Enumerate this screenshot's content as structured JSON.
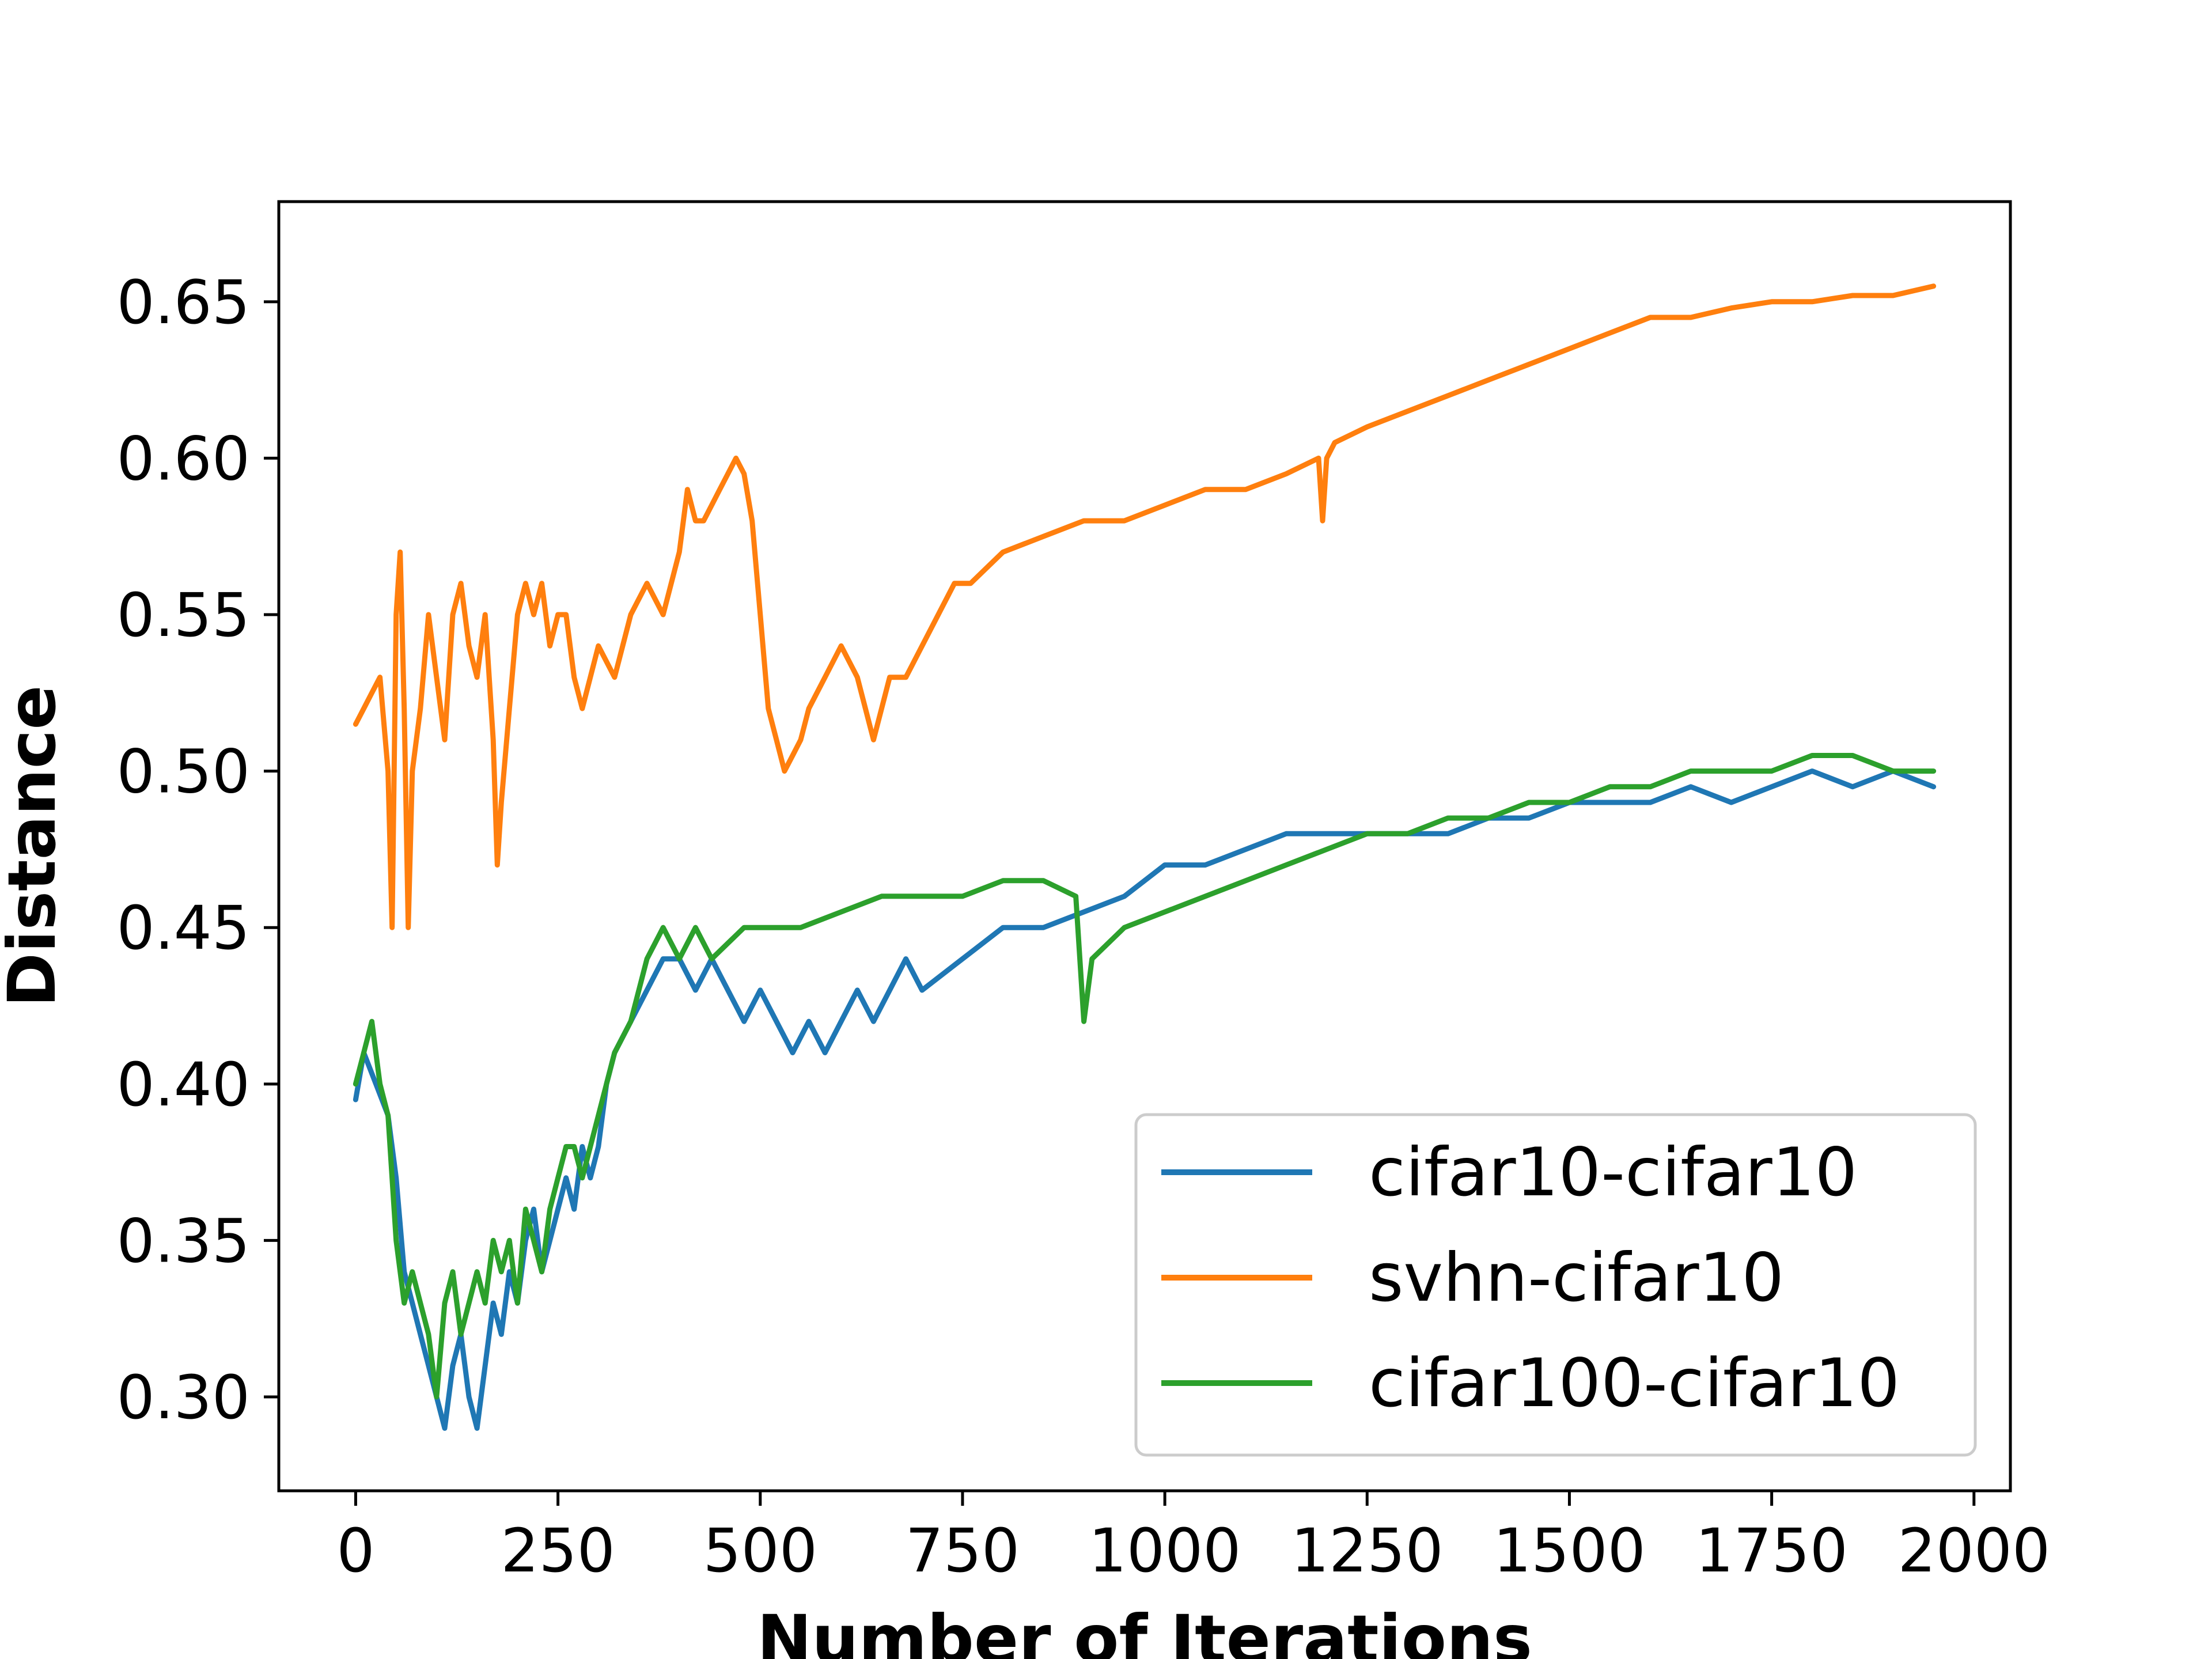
{
  "chart_data": {
    "type": "line",
    "title": "",
    "xlabel": "Number of Iterations",
    "ylabel": "Distance",
    "xlim": [
      -95,
      2045
    ],
    "ylim": [
      0.27,
      0.682
    ],
    "xticks": [
      0,
      250,
      500,
      750,
      1000,
      1250,
      1500,
      1750,
      2000
    ],
    "xtick_labels": [
      "0",
      "250",
      "500",
      "750",
      "1000",
      "1250",
      "1500",
      "1750",
      "2000"
    ],
    "yticks": [
      0.3,
      0.35,
      0.4,
      0.45,
      0.5,
      0.55,
      0.6,
      0.65
    ],
    "ytick_labels": [
      "0.30",
      "0.35",
      "0.40",
      "0.45",
      "0.50",
      "0.55",
      "0.60",
      "0.65"
    ],
    "grid": false,
    "legend_position": "lower-right",
    "series": [
      {
        "name": "cifar10-cifar10",
        "color": "#1f77b4",
        "x": [
          0,
          10,
          25,
          40,
          50,
          60,
          70,
          80,
          90,
          100,
          110,
          120,
          130,
          140,
          150,
          160,
          170,
          180,
          190,
          200,
          210,
          220,
          230,
          240,
          250,
          260,
          270,
          280,
          290,
          300,
          310,
          320,
          340,
          360,
          380,
          400,
          420,
          440,
          460,
          480,
          500,
          520,
          540,
          560,
          580,
          600,
          620,
          640,
          660,
          680,
          700,
          750,
          800,
          850,
          900,
          950,
          1000,
          1050,
          1100,
          1150,
          1200,
          1250,
          1300,
          1350,
          1400,
          1450,
          1500,
          1550,
          1600,
          1650,
          1700,
          1750,
          1800,
          1850,
          1900,
          1950
        ],
        "y": [
          0.395,
          0.41,
          0.4,
          0.39,
          0.37,
          0.34,
          0.33,
          0.32,
          0.31,
          0.3,
          0.29,
          0.31,
          0.32,
          0.3,
          0.29,
          0.31,
          0.33,
          0.32,
          0.34,
          0.33,
          0.35,
          0.36,
          0.34,
          0.35,
          0.36,
          0.37,
          0.36,
          0.38,
          0.37,
          0.38,
          0.4,
          0.41,
          0.42,
          0.43,
          0.44,
          0.44,
          0.43,
          0.44,
          0.43,
          0.42,
          0.43,
          0.42,
          0.41,
          0.42,
          0.41,
          0.42,
          0.43,
          0.42,
          0.43,
          0.44,
          0.43,
          0.44,
          0.45,
          0.45,
          0.455,
          0.46,
          0.47,
          0.47,
          0.475,
          0.48,
          0.48,
          0.48,
          0.48,
          0.48,
          0.485,
          0.485,
          0.49,
          0.49,
          0.49,
          0.495,
          0.49,
          0.495,
          0.5,
          0.495,
          0.5,
          0.495
        ]
      },
      {
        "name": "svhn-cifar10",
        "color": "#ff7f0e",
        "x": [
          0,
          10,
          20,
          30,
          40,
          45,
          50,
          55,
          60,
          65,
          70,
          80,
          90,
          100,
          110,
          120,
          130,
          140,
          150,
          160,
          170,
          175,
          180,
          190,
          200,
          210,
          220,
          230,
          240,
          250,
          260,
          270,
          280,
          290,
          300,
          320,
          340,
          360,
          380,
          400,
          410,
          420,
          430,
          440,
          450,
          460,
          470,
          480,
          490,
          500,
          510,
          520,
          530,
          540,
          550,
          560,
          580,
          600,
          620,
          640,
          660,
          680,
          700,
          720,
          740,
          760,
          780,
          800,
          850,
          900,
          950,
          1000,
          1050,
          1100,
          1150,
          1190,
          1195,
          1200,
          1210,
          1250,
          1300,
          1350,
          1400,
          1450,
          1500,
          1550,
          1600,
          1650,
          1700,
          1750,
          1800,
          1850,
          1900,
          1950
        ],
        "y": [
          0.515,
          0.52,
          0.525,
          0.53,
          0.5,
          0.45,
          0.55,
          0.57,
          0.52,
          0.45,
          0.5,
          0.52,
          0.55,
          0.53,
          0.51,
          0.55,
          0.56,
          0.54,
          0.53,
          0.55,
          0.51,
          0.47,
          0.49,
          0.52,
          0.55,
          0.56,
          0.55,
          0.56,
          0.54,
          0.55,
          0.55,
          0.53,
          0.52,
          0.53,
          0.54,
          0.53,
          0.55,
          0.56,
          0.55,
          0.57,
          0.59,
          0.58,
          0.58,
          0.585,
          0.59,
          0.595,
          0.6,
          0.595,
          0.58,
          0.55,
          0.52,
          0.51,
          0.5,
          0.505,
          0.51,
          0.52,
          0.53,
          0.54,
          0.53,
          0.51,
          0.53,
          0.53,
          0.54,
          0.55,
          0.56,
          0.56,
          0.565,
          0.57,
          0.575,
          0.58,
          0.58,
          0.585,
          0.59,
          0.59,
          0.595,
          0.6,
          0.58,
          0.6,
          0.605,
          0.61,
          0.615,
          0.62,
          0.625,
          0.63,
          0.635,
          0.64,
          0.645,
          0.645,
          0.648,
          0.65,
          0.65,
          0.652,
          0.652,
          0.655
        ]
      },
      {
        "name": "cifar100-cifar10",
        "color": "#2ca02c",
        "x": [
          0,
          10,
          20,
          30,
          40,
          50,
          60,
          70,
          80,
          90,
          100,
          110,
          120,
          130,
          140,
          150,
          160,
          170,
          180,
          190,
          200,
          210,
          220,
          230,
          240,
          250,
          260,
          270,
          280,
          290,
          300,
          320,
          340,
          360,
          380,
          400,
          420,
          440,
          460,
          480,
          500,
          550,
          600,
          650,
          700,
          750,
          800,
          850,
          890,
          900,
          910,
          950,
          1000,
          1050,
          1100,
          1150,
          1200,
          1250,
          1300,
          1350,
          1400,
          1450,
          1500,
          1550,
          1600,
          1650,
          1700,
          1750,
          1800,
          1850,
          1900,
          1950
        ],
        "y": [
          0.4,
          0.41,
          0.42,
          0.4,
          0.39,
          0.35,
          0.33,
          0.34,
          0.33,
          0.32,
          0.3,
          0.33,
          0.34,
          0.32,
          0.33,
          0.34,
          0.33,
          0.35,
          0.34,
          0.35,
          0.33,
          0.36,
          0.35,
          0.34,
          0.36,
          0.37,
          0.38,
          0.38,
          0.37,
          0.38,
          0.39,
          0.41,
          0.42,
          0.44,
          0.45,
          0.44,
          0.45,
          0.44,
          0.445,
          0.45,
          0.45,
          0.45,
          0.455,
          0.46,
          0.46,
          0.46,
          0.465,
          0.465,
          0.46,
          0.42,
          0.44,
          0.45,
          0.455,
          0.46,
          0.465,
          0.47,
          0.475,
          0.48,
          0.48,
          0.485,
          0.485,
          0.49,
          0.49,
          0.495,
          0.495,
          0.5,
          0.5,
          0.5,
          0.505,
          0.505,
          0.5,
          0.5
        ]
      }
    ]
  }
}
